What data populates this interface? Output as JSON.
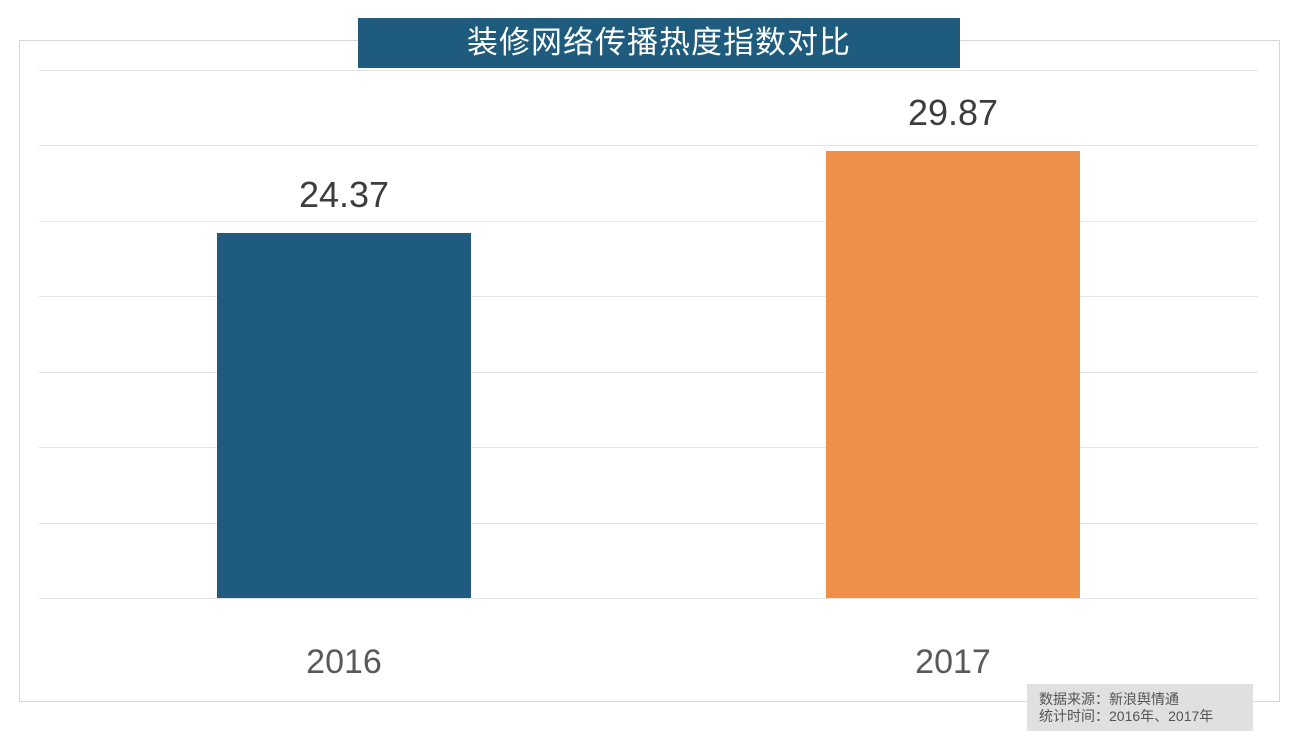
{
  "chart": {
    "title": "装修网络传播热度指数对比",
    "source_line1": "数据来源：新浪舆情通",
    "source_line2": "统计时间：2016年、2017年"
  },
  "chart_data": {
    "type": "bar",
    "title": "装修网络传播热度指数对比",
    "categories": [
      "2016",
      "2017"
    ],
    "values": [
      24.37,
      29.87
    ],
    "value_labels": [
      "24.37",
      "29.87"
    ],
    "bar_colors": [
      "#1e5b7c",
      "#ee9049"
    ],
    "xlabel": "",
    "ylabel": "",
    "ylim": [
      0,
      35
    ],
    "grid": true,
    "gridline_count": 8,
    "gridline_interval": 5,
    "y_tick_labels_visible": false,
    "legend": "none",
    "source": "数据来源：新浪舆情通",
    "period": "统计时间：2016年、2017年"
  },
  "colors": {
    "title_bg": "#1e5b7c",
    "title_text": "#ffffff",
    "bar_2016": "#1e5b7c",
    "bar_2017": "#ee9049",
    "gridline": "#e4e4e4",
    "plot_border": "#d6d6d6",
    "value_label_text": "#3d3d3d",
    "category_label_text": "#595959",
    "source_bg": "#e0e0e0",
    "source_text": "#555555"
  }
}
